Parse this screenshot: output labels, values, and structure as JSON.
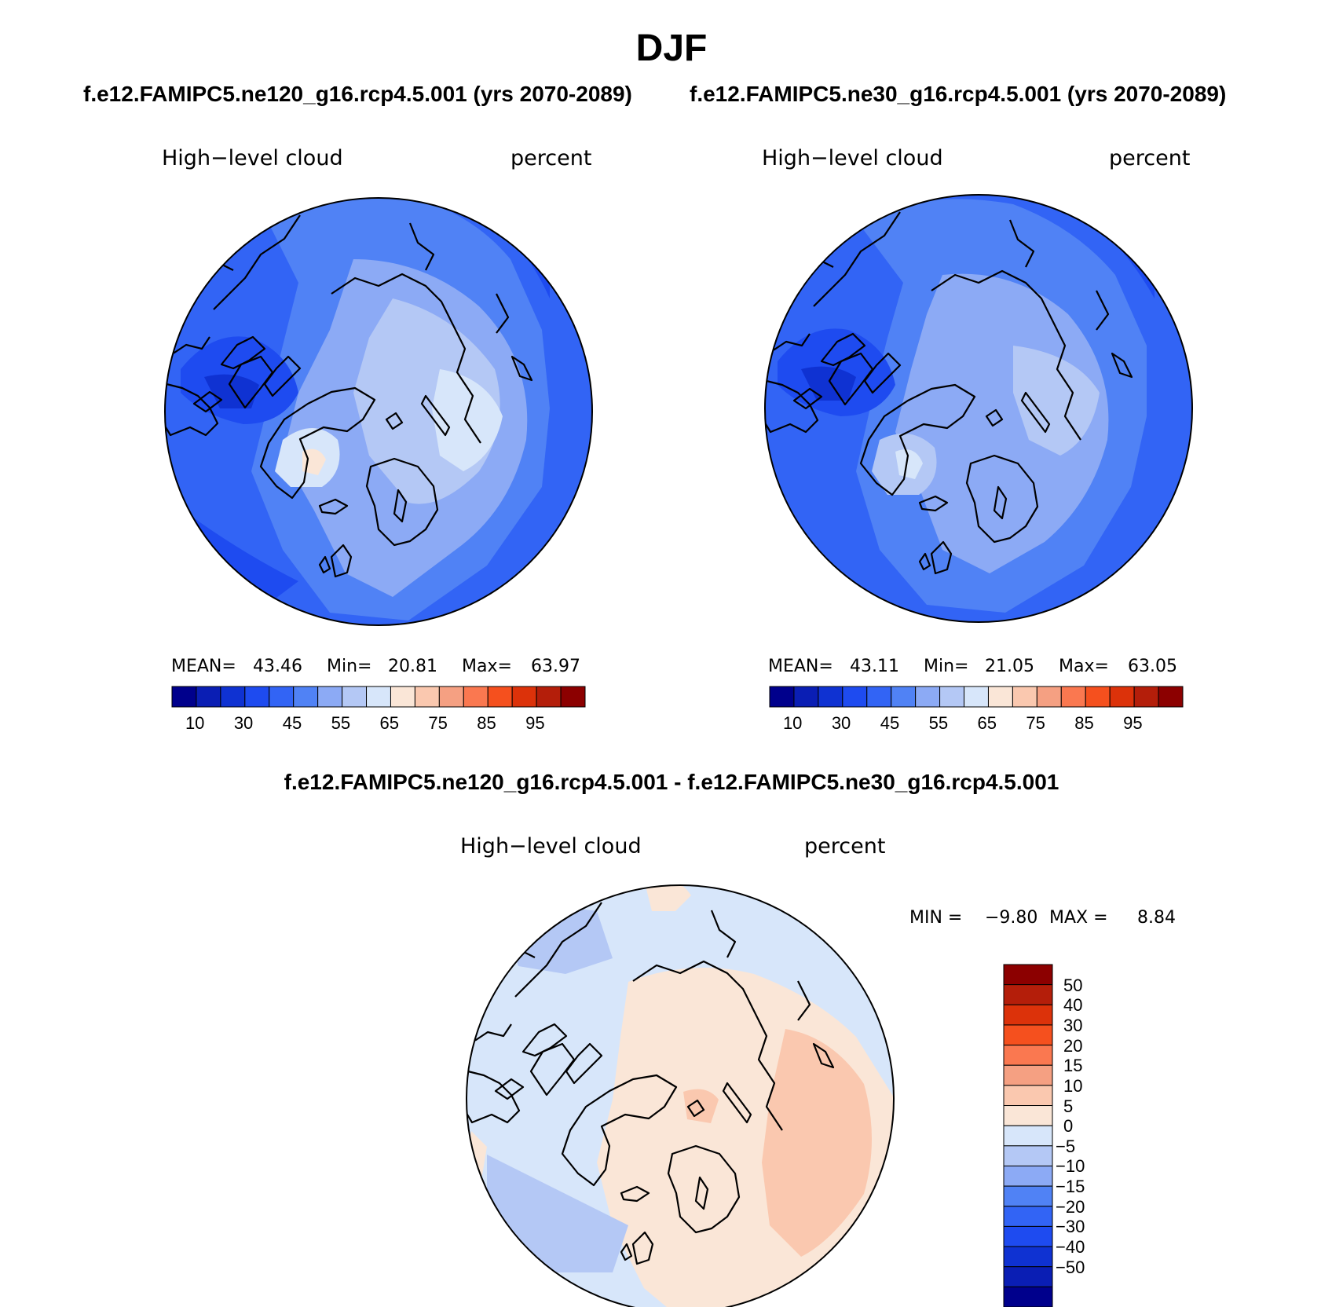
{
  "title": "DJF",
  "case1_title": "f.e12.FAMIPC5.ne120_g16.rcp4.5.001 (yrs 2070-2089)",
  "case2_title": "f.e12.FAMIPC5.ne30_g16.rcp4.5.001 (yrs 2070-2089)",
  "diff_title": "f.e12.FAMIPC5.ne120_g16.rcp4.5.001 - f.e12.FAMIPC5.ne30_g16.rcp4.5.001",
  "panels": [
    {
      "variable": "High−level cloud",
      "units": "percent",
      "mean_label": "MEAN=",
      "mean": "43.46",
      "min_label": "Min=",
      "min": "20.81",
      "max_label": "Max=",
      "max": "63.97"
    },
    {
      "variable": "High−level cloud",
      "units": "percent",
      "mean_label": "MEAN=",
      "mean": "43.11",
      "min_label": "Min=",
      "min": "21.05",
      "max_label": "Max=",
      "max": "63.05"
    }
  ],
  "diff_panel": {
    "variable": "High−level cloud",
    "units": "percent",
    "min_label": "MIN =",
    "min": "−9.80",
    "max_label": "MAX =",
    "max": "8.84"
  },
  "colorbar_abs": {
    "colors": [
      "#00008c",
      "#0a1eb4",
      "#0f32d2",
      "#1e4bf0",
      "#3264f5",
      "#5082f5",
      "#8caaf5",
      "#b4c8f5",
      "#d7e6fa",
      "#fae6d7",
      "#fac8af",
      "#f5a082",
      "#fa7850",
      "#f5501e",
      "#dc320a",
      "#b41e0a",
      "#8c0000"
    ],
    "ticks": [
      "10",
      "30",
      "45",
      "55",
      "65",
      "75",
      "85",
      "95"
    ]
  },
  "colorbar_diff": {
    "colors": [
      "#8c0000",
      "#b41e0a",
      "#dc320a",
      "#f5501e",
      "#fa7850",
      "#f5a082",
      "#fac8af",
      "#fae6d7",
      "#d7e6fa",
      "#b4c8f5",
      "#8caaf5",
      "#5082f5",
      "#3264f5",
      "#1e4bf0",
      "#0f32d2",
      "#0a1eb4",
      "#00008c"
    ],
    "ticks": [
      "50",
      "40",
      "30",
      "20",
      "15",
      "10",
      "5",
      "0",
      "−5",
      "−10",
      "−15",
      "−20",
      "−30",
      "−40",
      "−50"
    ]
  }
}
